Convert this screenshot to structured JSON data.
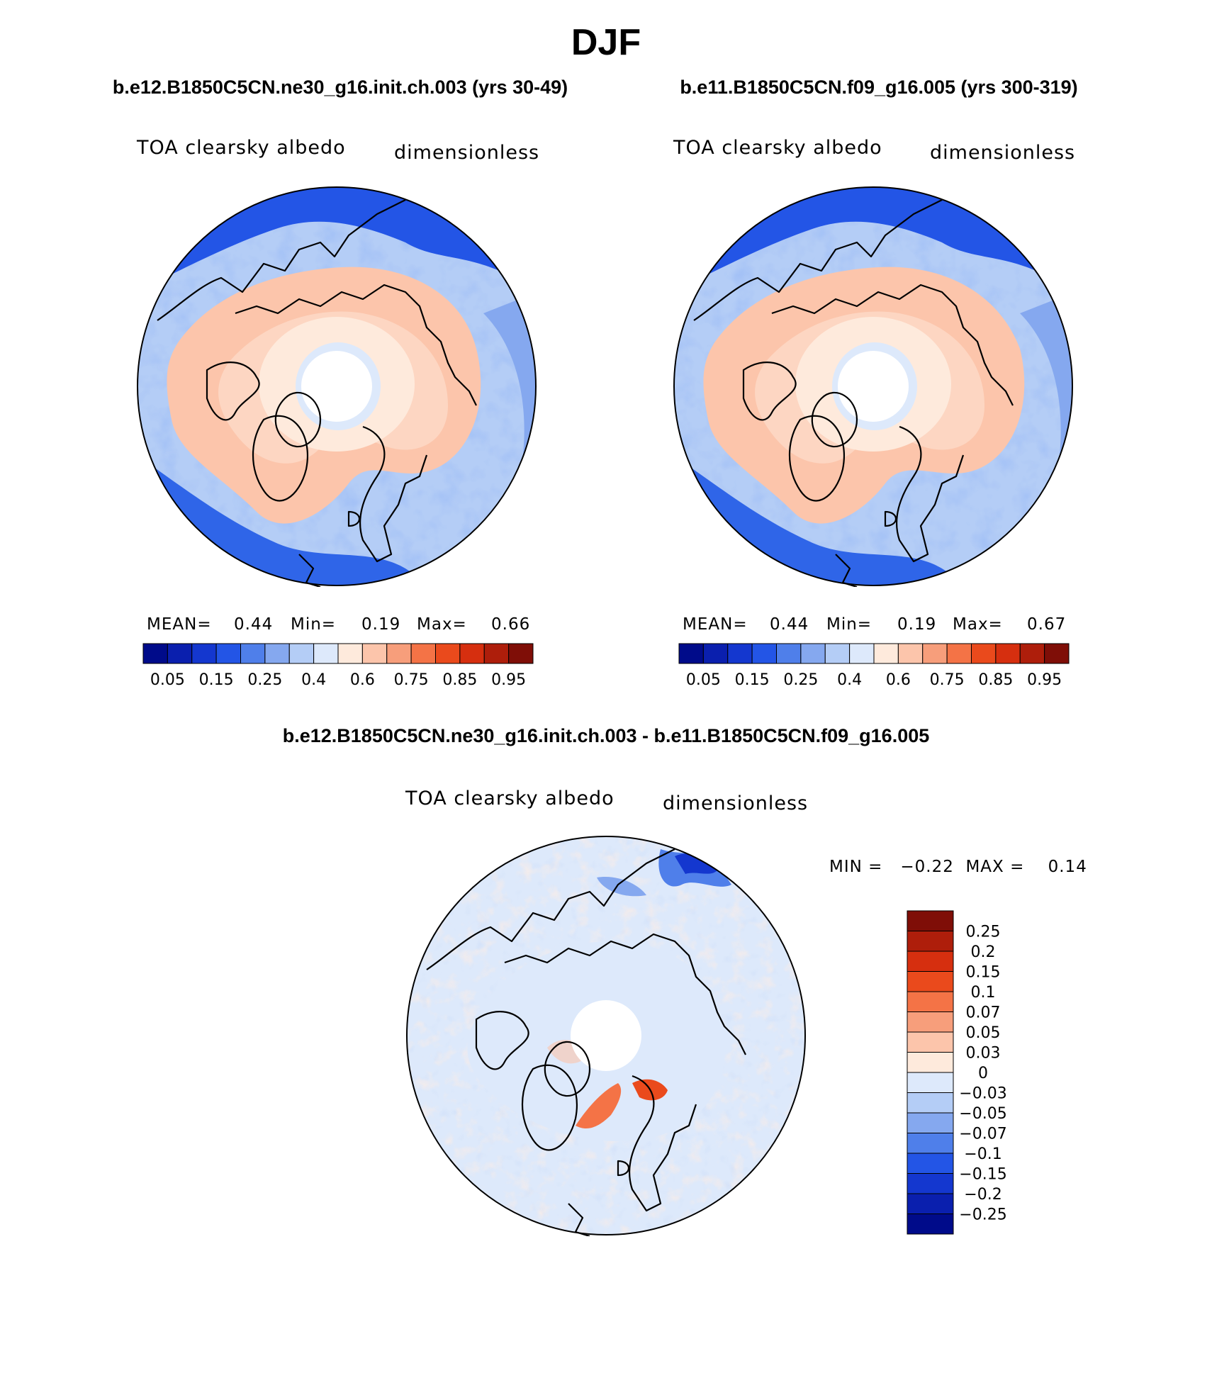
{
  "season": "DJF",
  "panels": [
    {
      "case_title": "b.e12.B1850C5CN.ne30_g16.init.ch.003 (yrs 30-49)",
      "variable": "TOA clearsky albedo",
      "units": "dimensionless",
      "mean_label": "MEAN=",
      "mean": "0.44",
      "min_label": "Min=",
      "min": "0.19",
      "max_label": "Max=",
      "max": "0.66"
    },
    {
      "case_title": "b.e11.B1850C5CN.f09_g16.005 (yrs 300-319)",
      "variable": "TOA clearsky albedo",
      "units": "dimensionless",
      "mean_label": "MEAN=",
      "mean": "0.44",
      "min_label": "Min=",
      "min": "0.19",
      "max_label": "Max=",
      "max": "0.67"
    }
  ],
  "diff": {
    "title": "b.e12.B1850C5CN.ne30_g16.init.ch.003 - b.e11.B1850C5CN.f09_g16.005",
    "variable": "TOA clearsky albedo",
    "units": "dimensionless",
    "minmax_text": "MIN =   −0.22  MAX =    0.14"
  },
  "chart_data": [
    {
      "type": "heatmap",
      "title": "TOA clearsky albedo",
      "units": "dimensionless",
      "projection": "north polar stereographic",
      "colorbar": {
        "labels": [
          "0.05",
          "0.15",
          "0.25",
          "0.4",
          "0.6",
          "0.75",
          "0.85",
          "0.95"
        ],
        "colors": [
          "#000b8a",
          "#0a1fae",
          "#1437cf",
          "#2355e6",
          "#4f7fea",
          "#85a8ef",
          "#b4cdf6",
          "#dde9fb",
          "#feeadc",
          "#fcc5ab",
          "#f79e7b",
          "#f47346",
          "#ea4a1c",
          "#d62f0f",
          "#ae1e0b",
          "#7f0e07"
        ]
      },
      "mean": 0.44,
      "min": 0.19,
      "max": 0.66
    },
    {
      "type": "heatmap",
      "title": "TOA clearsky albedo",
      "units": "dimensionless",
      "projection": "north polar stereographic",
      "colorbar": {
        "labels": [
          "0.05",
          "0.15",
          "0.25",
          "0.4",
          "0.6",
          "0.75",
          "0.85",
          "0.95"
        ],
        "colors": [
          "#000b8a",
          "#0a1fae",
          "#1437cf",
          "#2355e6",
          "#4f7fea",
          "#85a8ef",
          "#b4cdf6",
          "#dde9fb",
          "#feeadc",
          "#fcc5ab",
          "#f79e7b",
          "#f47346",
          "#ea4a1c",
          "#d62f0f",
          "#ae1e0b",
          "#7f0e07"
        ]
      },
      "mean": 0.44,
      "min": 0.19,
      "max": 0.67
    },
    {
      "type": "heatmap",
      "title": "TOA clearsky albedo",
      "units": "dimensionless",
      "projection": "north polar stereographic",
      "colorbar": {
        "labels": [
          "0.25",
          "0.2",
          "0.15",
          "0.1",
          "0.07",
          "0.05",
          "0.03",
          "0",
          "−0.03",
          "−0.05",
          "−0.07",
          "−0.1",
          "−0.15",
          "−0.2",
          "−0.25"
        ],
        "colors": [
          "#7f0e07",
          "#ae1e0b",
          "#d62f0f",
          "#ea4a1c",
          "#f47346",
          "#f79e7b",
          "#fcc5ab",
          "#feeadc",
          "#dde9fb",
          "#b4cdf6",
          "#85a8ef",
          "#4f7fea",
          "#2355e6",
          "#1437cf",
          "#0a1fae",
          "#000b8a"
        ]
      },
      "min": -0.22,
      "max": 0.14
    }
  ]
}
